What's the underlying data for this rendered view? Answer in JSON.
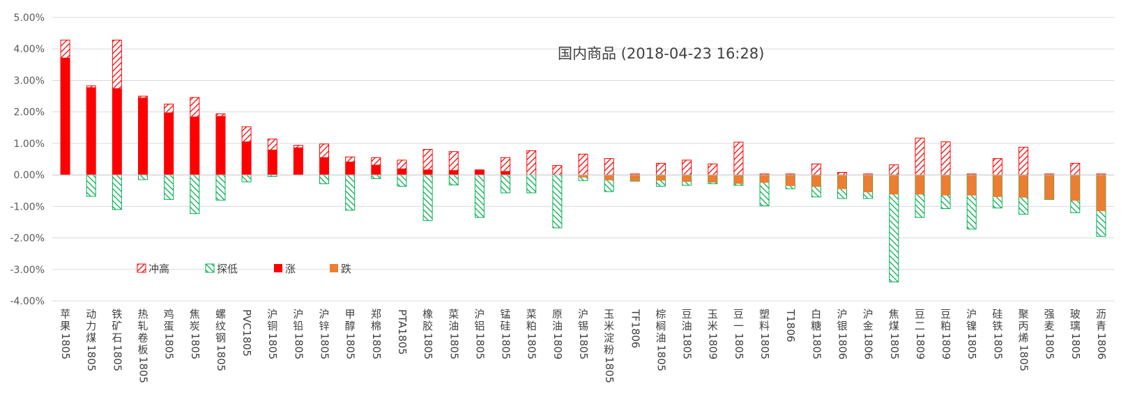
{
  "chart_data": {
    "type": "bar",
    "title": "国内商品 (2018-04-23 16:28)",
    "xlabel": "",
    "ylabel": "",
    "ylim": [
      -4,
      5
    ],
    "yticks": [
      5,
      4,
      3,
      2,
      1,
      0,
      -1,
      -2,
      -3,
      -4
    ],
    "ytick_labels": [
      "5.00%",
      "4.00%",
      "3.00%",
      "2.00%",
      "1.00%",
      "0.00%",
      "-1.00%",
      "-2.00%",
      "-3.00%",
      "-4.00%"
    ],
    "grid": true,
    "legend": {
      "position": "lower-left",
      "entries": [
        "冲高",
        "探低",
        "涨",
        "跌"
      ]
    },
    "colors": {
      "rise": "#ff0000",
      "fall": "#ed7d31",
      "high": "#ff0000",
      "low": "#00b050",
      "grid": "#d9d9d9",
      "axis": "#bfbfbf"
    },
    "categories": [
      "苹果1805",
      "动力煤1805",
      "铁矿石1805",
      "热轧卷板1805",
      "鸡蛋1805",
      "焦炭1805",
      "螺纹钢1805",
      "PVC1805",
      "沪铜1805",
      "沪铅1805",
      "沪锌1805",
      "甲醇1805",
      "郑棉1805",
      "PTA1805",
      "橡胶1805",
      "菜油1805",
      "沪铝1805",
      "锰硅1805",
      "菜粕1805",
      "原油1809",
      "沪锡1805",
      "玉米淀粉1805",
      "TF1806",
      "棕榈油1805",
      "豆油1805",
      "玉米1809",
      "豆一1805",
      "塑料1805",
      "T1806",
      "白糖1805",
      "沪银1806",
      "沪金1806",
      "焦煤1805",
      "豆二1809",
      "豆粕1809",
      "沪镍1805",
      "硅铁1805",
      "聚丙烯1805",
      "强麦1805",
      "玻璃1805",
      "沥青1806"
    ],
    "series": [
      {
        "name": "涨",
        "values": [
          3.72,
          2.78,
          2.75,
          2.45,
          1.98,
          1.85,
          1.87,
          1.06,
          0.8,
          0.87,
          0.56,
          0.42,
          0.32,
          0.2,
          0.17,
          0.15,
          0.16,
          0.12,
          0.0,
          0.0,
          0.0,
          0.0,
          0.0,
          0.0,
          0.0,
          0.0,
          0.0,
          0.0,
          0.0,
          0.0,
          0.0,
          0.0,
          0.0,
          0.0,
          0.0,
          0.0,
          0.0,
          0.0,
          0.0,
          0.0,
          0.0
        ]
      },
      {
        "name": "跌",
        "values": [
          0.0,
          0.0,
          0.0,
          0.0,
          0.0,
          0.0,
          0.0,
          0.0,
          0.0,
          0.0,
          0.0,
          0.0,
          0.0,
          0.0,
          0.0,
          0.0,
          0.0,
          0.0,
          0.0,
          0.0,
          -0.08,
          -0.17,
          -0.2,
          -0.18,
          -0.22,
          -0.24,
          -0.28,
          -0.25,
          -0.35,
          -0.38,
          -0.45,
          -0.55,
          -0.62,
          -0.62,
          -0.65,
          -0.65,
          -0.7,
          -0.72,
          -0.78,
          -0.82,
          -1.15
        ]
      },
      {
        "name": "冲高",
        "values": [
          4.28,
          2.83,
          4.28,
          2.5,
          2.25,
          2.46,
          1.94,
          1.53,
          1.14,
          0.94,
          0.98,
          0.57,
          0.55,
          0.47,
          0.81,
          0.74,
          0.16,
          0.55,
          0.77,
          0.3,
          0.66,
          0.52,
          0.03,
          0.37,
          0.47,
          0.35,
          1.04,
          0.03,
          0.03,
          0.35,
          0.08,
          0.03,
          0.32,
          1.17,
          1.05,
          0.03,
          0.52,
          0.88,
          0.03,
          0.37,
          0.03
        ]
      },
      {
        "name": "探低",
        "values": [
          0.0,
          -0.68,
          -1.1,
          -0.15,
          -0.78,
          -1.23,
          -0.8,
          -0.22,
          -0.05,
          0.0,
          -0.28,
          -1.12,
          -0.12,
          -0.36,
          -1.45,
          -0.32,
          -1.35,
          -0.57,
          -0.57,
          -1.68,
          -0.18,
          -0.53,
          -0.2,
          -0.36,
          -0.33,
          -0.28,
          -0.33,
          -0.98,
          -0.44,
          -0.7,
          -0.75,
          -0.75,
          -3.4,
          -1.35,
          -1.07,
          -1.72,
          -1.05,
          -1.25,
          -0.78,
          -1.2,
          -1.95
        ]
      }
    ]
  }
}
